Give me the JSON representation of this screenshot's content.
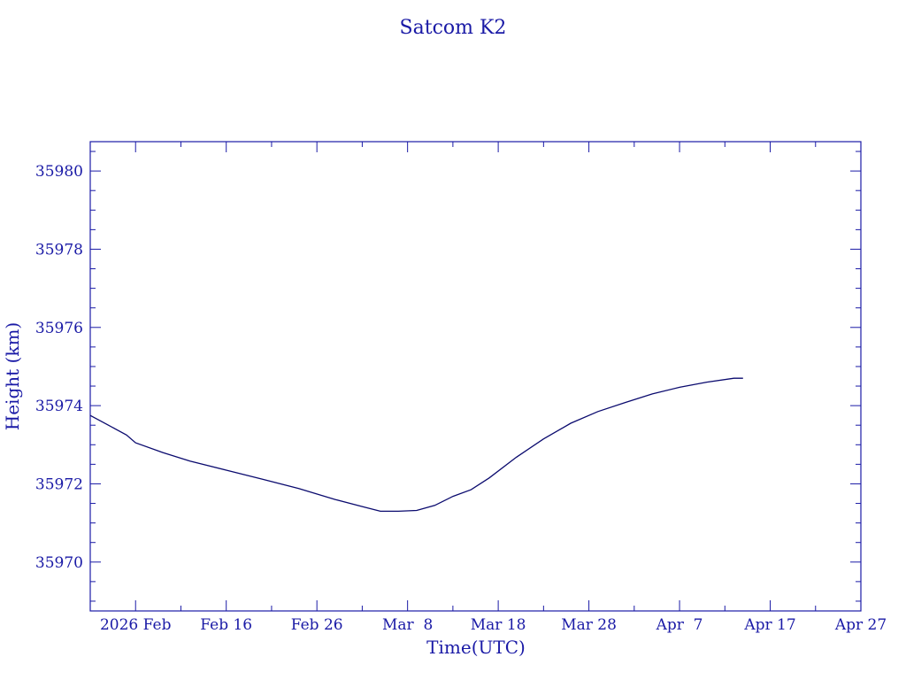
{
  "chart_data": {
    "type": "line",
    "title": "Satcom K2",
    "xlabel": "Time(UTC)",
    "ylabel": "Height (km)",
    "x_ticks": [
      {
        "date": "2026-02-06",
        "label": "2026 Feb"
      },
      {
        "date": "2026-02-16",
        "label": "Feb 16"
      },
      {
        "date": "2026-02-26",
        "label": "Feb 26"
      },
      {
        "date": "2026-03-08",
        "label": "Mar  8"
      },
      {
        "date": "2026-03-18",
        "label": "Mar 18"
      },
      {
        "date": "2026-03-28",
        "label": "Mar 28"
      },
      {
        "date": "2026-04-07",
        "label": "Apr  7"
      },
      {
        "date": "2026-04-17",
        "label": "Apr 17"
      },
      {
        "date": "2026-04-27",
        "label": "Apr 27"
      }
    ],
    "y_ticks": [
      35970,
      35972,
      35974,
      35976,
      35978,
      35980
    ],
    "xlim": [
      "2026-02-01",
      "2026-04-27"
    ],
    "ylim": [
      35968.75,
      35980.75
    ],
    "series": [
      {
        "color": "#0a0a6e",
        "points": [
          {
            "x": "2026-02-01",
            "y": 35973.75
          },
          {
            "x": "2026-02-03",
            "y": 35973.5
          },
          {
            "x": "2026-02-05",
            "y": 35973.25
          },
          {
            "x": "2026-02-06",
            "y": 35973.05
          },
          {
            "x": "2026-02-09",
            "y": 35972.8
          },
          {
            "x": "2026-02-12",
            "y": 35972.58
          },
          {
            "x": "2026-02-16",
            "y": 35972.35
          },
          {
            "x": "2026-02-20",
            "y": 35972.12
          },
          {
            "x": "2026-02-24",
            "y": 35971.88
          },
          {
            "x": "2026-02-28",
            "y": 35971.6
          },
          {
            "x": "2026-03-03",
            "y": 35971.42
          },
          {
            "x": "2026-03-05",
            "y": 35971.3
          },
          {
            "x": "2026-03-07",
            "y": 35971.3
          },
          {
            "x": "2026-03-09",
            "y": 35971.32
          },
          {
            "x": "2026-03-11",
            "y": 35971.45
          },
          {
            "x": "2026-03-13",
            "y": 35971.68
          },
          {
            "x": "2026-03-15",
            "y": 35971.85
          },
          {
            "x": "2026-03-17",
            "y": 35972.15
          },
          {
            "x": "2026-03-20",
            "y": 35972.68
          },
          {
            "x": "2026-03-23",
            "y": 35973.15
          },
          {
            "x": "2026-03-26",
            "y": 35973.55
          },
          {
            "x": "2026-03-29",
            "y": 35973.85
          },
          {
            "x": "2026-04-01",
            "y": 35974.08
          },
          {
            "x": "2026-04-04",
            "y": 35974.3
          },
          {
            "x": "2026-04-07",
            "y": 35974.47
          },
          {
            "x": "2026-04-10",
            "y": 35974.6
          },
          {
            "x": "2026-04-13",
            "y": 35974.7
          },
          {
            "x": "2026-04-14",
            "y": 35974.7
          }
        ]
      }
    ]
  }
}
